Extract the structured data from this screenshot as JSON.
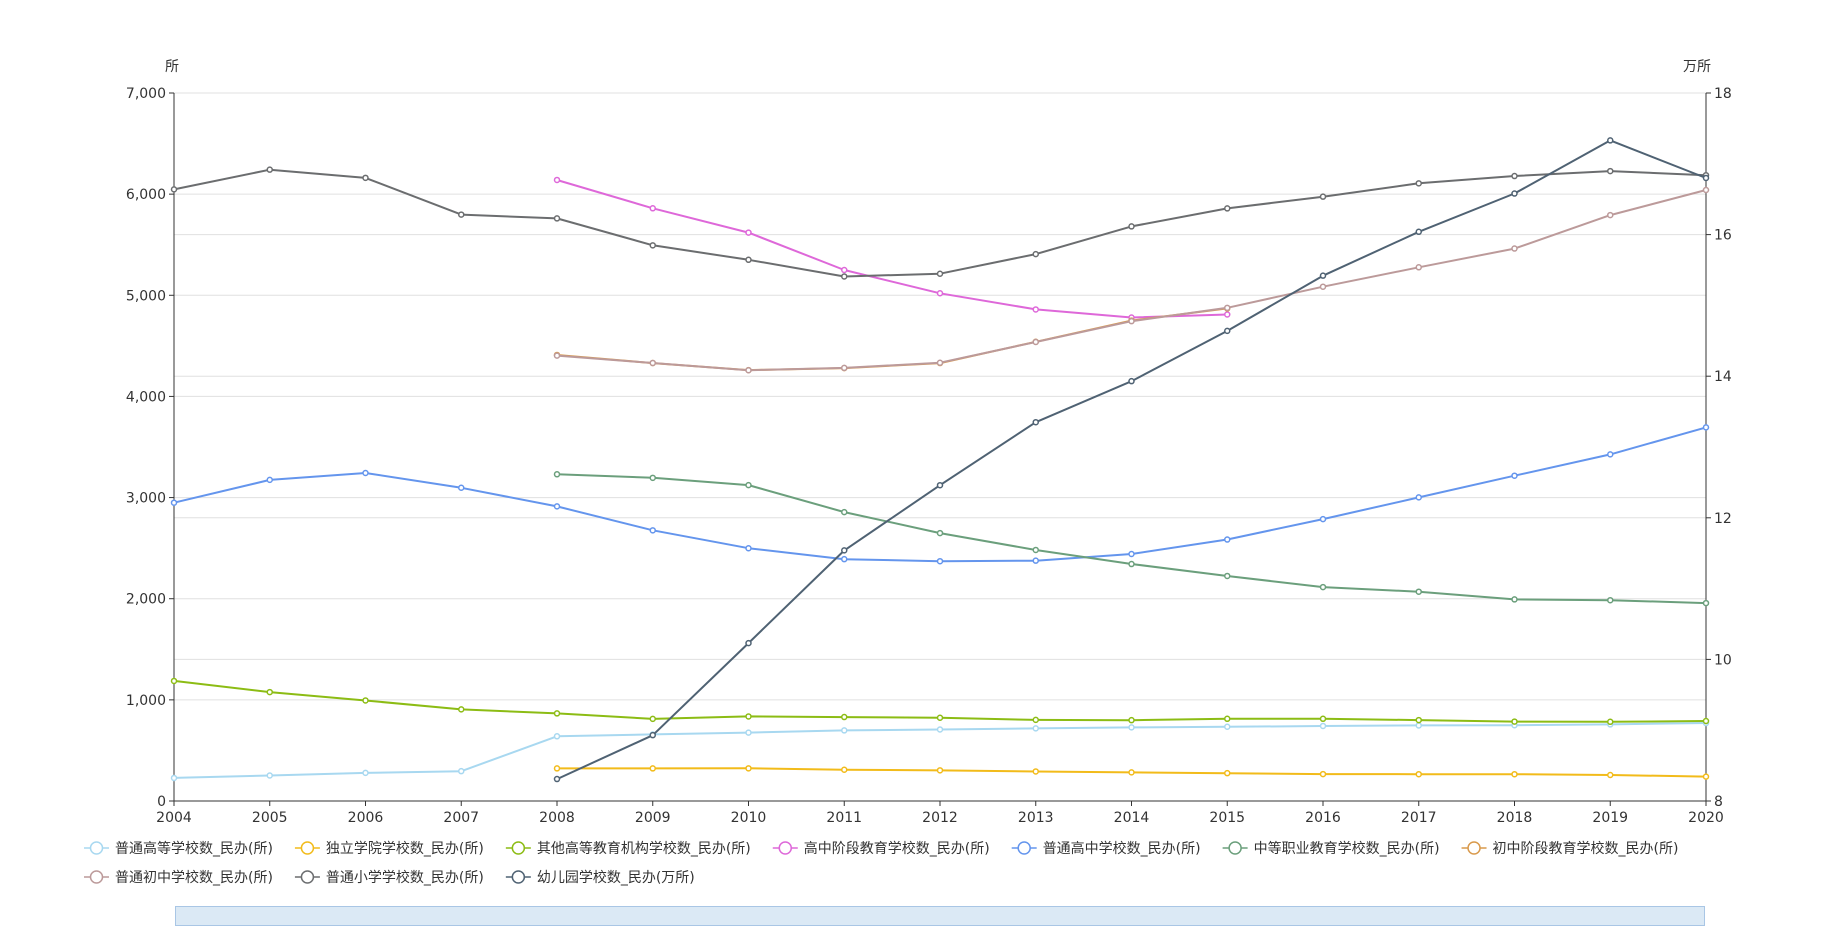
{
  "chart_data": {
    "type": "line",
    "x": [
      "2004",
      "2005",
      "2006",
      "2007",
      "2008",
      "2009",
      "2010",
      "2011",
      "2012",
      "2013",
      "2014",
      "2015",
      "2016",
      "2017",
      "2018",
      "2019",
      "2020"
    ],
    "left_axis": {
      "unit": "所",
      "min": 0,
      "max": 7000,
      "interval": 1000,
      "tick_labels": [
        "0",
        "1,000",
        "2,000",
        "3,000",
        "4,000",
        "5,000",
        "6,000",
        "7,000"
      ]
    },
    "right_axis": {
      "unit": "万所",
      "min": 8,
      "max": 18,
      "interval": 2,
      "tick_labels": [
        "8",
        "10",
        "12",
        "14",
        "16",
        "18"
      ]
    },
    "grid": true,
    "legend_position": "bottom",
    "series": [
      {
        "name": "普通高等学校数_民办(所)",
        "color": "#a8d8f0",
        "axis": "left",
        "values": [
          228,
          252,
          278,
          295,
          640,
          658,
          676,
          698,
          707,
          718,
          728,
          734,
          742,
          747,
          749,
          757,
          771
        ]
      },
      {
        "name": "独立学院学校数_民办(所)",
        "color": "#f2bb1a",
        "axis": "left",
        "values": [
          null,
          null,
          null,
          null,
          322,
          322,
          323,
          309,
          303,
          292,
          283,
          275,
          266,
          265,
          265,
          257,
          241
        ]
      },
      {
        "name": "其他高等教育机构学校数_民办(所)",
        "color": "#8cbc14",
        "axis": "left",
        "values": [
          1187,
          1077,
          994,
          906,
          866,
          812,
          836,
          830,
          823,
          802,
          799,
          813,
          813,
          800,
          785,
          783,
          791
        ]
      },
      {
        "name": "高中阶段教育学校数_民办(所)",
        "color": "#de68d9",
        "axis": "left",
        "values": [
          null,
          null,
          null,
          null,
          6140,
          5860,
          5620,
          5250,
          5020,
          4860,
          4780,
          4810,
          null,
          null,
          null,
          null,
          null
        ]
      },
      {
        "name": "普通高中学校数_民办(所)",
        "color": "#6495ed",
        "axis": "left",
        "values": [
          2949,
          3175,
          3243,
          3097,
          2913,
          2676,
          2499,
          2391,
          2371,
          2376,
          2442,
          2585,
          2787,
          3002,
          3216,
          3427,
          3694
        ]
      },
      {
        "name": "中等职业教育学校数_民办(所)",
        "color": "#6b9f7c",
        "axis": "left",
        "values": [
          null,
          null,
          null,
          null,
          3230,
          3195,
          3123,
          2856,
          2649,
          2482,
          2343,
          2225,
          2115,
          2069,
          1993,
          1985,
          1957
        ]
      },
      {
        "name": "初中阶段教育学校数_民办(所)",
        "color": "#d99a4c",
        "axis": "left",
        "values": [
          null,
          null,
          null,
          null,
          4410,
          4330,
          4260,
          4280,
          4330,
          4540,
          4750,
          4870,
          null,
          null,
          null,
          null,
          null
        ]
      },
      {
        "name": "普通初中学校数_民办(所)",
        "color": "#bc9a9a",
        "axis": "left",
        "values": [
          null,
          null,
          null,
          null,
          4404,
          4331,
          4259,
          4282,
          4333,
          4538,
          4744,
          4876,
          5085,
          5277,
          5462,
          5793,
          6041
        ]
      },
      {
        "name": "普通小学学校数_民办(所)",
        "color": "#6b6d6f",
        "axis": "left",
        "values": [
          6047,
          6242,
          6161,
          5798,
          5760,
          5494,
          5351,
          5186,
          5213,
          5407,
          5681,
          5859,
          5975,
          6107,
          6179,
          6228,
          6187
        ]
      },
      {
        "name": "幼儿园学校数_民办(万所)",
        "color": "#4f6273",
        "axis": "right",
        "values": [
          null,
          null,
          null,
          null,
          8.31,
          8.93,
          10.23,
          11.54,
          12.46,
          13.35,
          13.93,
          14.64,
          15.42,
          16.04,
          16.58,
          17.33,
          16.8
        ]
      }
    ]
  }
}
